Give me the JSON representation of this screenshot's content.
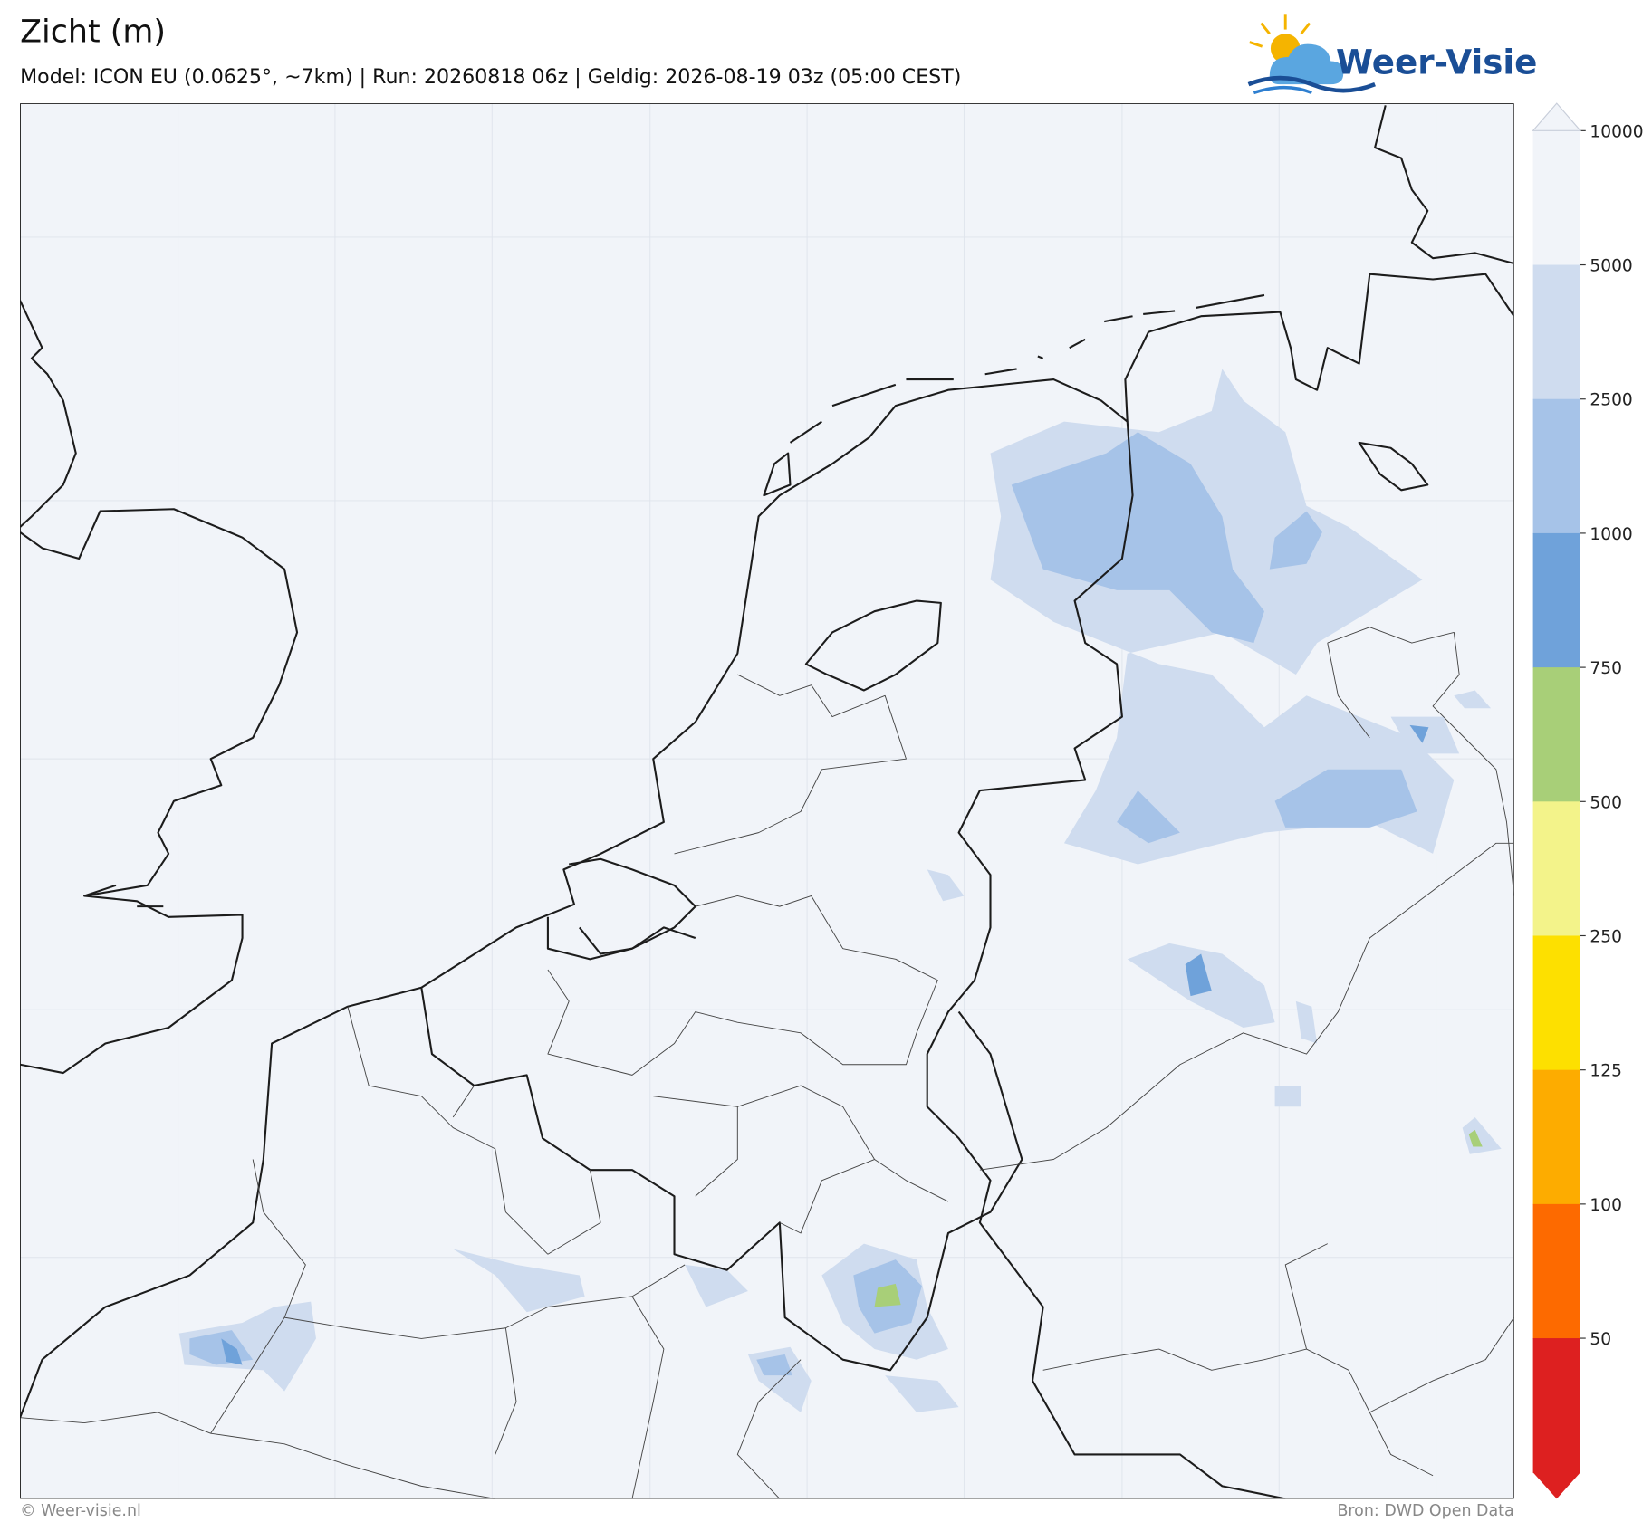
{
  "header": {
    "title": "Zicht (m)",
    "subtitle": "Model: ICON EU (0.0625°, ~7km)  |  Run: 20260818 06z  |  Geldig: 2026-08-19 03z (05:00 CEST)",
    "logo": "Weer-Visie"
  },
  "colorbar": {
    "levels": [
      {
        "label": "10000",
        "color": "#f1f4f9"
      },
      {
        "label": "5000",
        "color": "#cfdcef"
      },
      {
        "label": "2500",
        "color": "#a6c3e8"
      },
      {
        "label": "1000",
        "color": "#6fa2da"
      },
      {
        "label": "750",
        "color": "#a8cf78"
      },
      {
        "label": "500",
        "color": "#f3f38a"
      },
      {
        "label": "250",
        "color": "#fde000"
      },
      {
        "label": "125",
        "color": "#fdac00"
      },
      {
        "label": "100",
        "color": "#fd6a00"
      },
      {
        "label": "50",
        "color": "#dd2020"
      }
    ]
  },
  "footer": {
    "left": "© Weer-visie.nl",
    "right": "Bron: DWD Open Data"
  }
}
